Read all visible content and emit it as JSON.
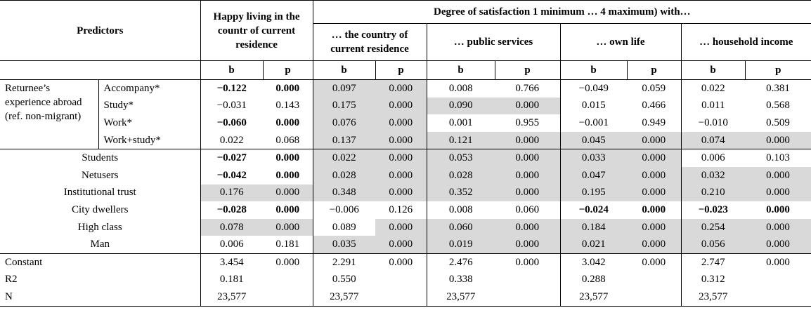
{
  "header": {
    "predictors": "Predictors",
    "happy": "Happy living in the countr of current residence",
    "satisfaction_title": "Degree of satisfaction 1 minimum … 4 maximum) with…",
    "sub": [
      "… the country of current residence",
      "… public services",
      "… own life",
      "… household income"
    ],
    "b": "b",
    "p": "p"
  },
  "returnee_label": "Returnee’s experience abroad (ref. non-migrant)",
  "returnee_rows": [
    {
      "label": "Accompany*",
      "vals": [
        "−0.122",
        "0.000",
        "0.097",
        "0.000",
        "0.008",
        "0.766",
        "−0.049",
        "0.059",
        "0.022",
        "0.381"
      ]
    },
    {
      "label": "Study*",
      "vals": [
        "−0.031",
        "0.143",
        "0.175",
        "0.000",
        "0.090",
        "0.000",
        "0.015",
        "0.466",
        "0.011",
        "0.568"
      ]
    },
    {
      "label": "Work*",
      "vals": [
        "−0.060",
        "0.000",
        "0.076",
        "0.000",
        "0.001",
        "0.955",
        "−0.001",
        "0.949",
        "−0.010",
        "0.509"
      ]
    },
    {
      "label": "Work+study*",
      "vals": [
        "0.022",
        "0.068",
        "0.137",
        "0.000",
        "0.121",
        "0.000",
        "0.045",
        "0.000",
        "0.074",
        "0.000"
      ]
    }
  ],
  "other_rows": [
    {
      "label": "Students",
      "vals": [
        "−0.027",
        "0.000",
        "0.022",
        "0.000",
        "0.053",
        "0.000",
        "0.033",
        "0.000",
        "0.006",
        "0.103"
      ]
    },
    {
      "label": "Netusers",
      "vals": [
        "−0.042",
        "0.000",
        "0.028",
        "0.000",
        "0.028",
        "0.000",
        "0.047",
        "0.000",
        "0.032",
        "0.000"
      ]
    },
    {
      "label": "Institutional trust",
      "vals": [
        "0.176",
        "0.000",
        "0.348",
        "0.000",
        "0.352",
        "0.000",
        "0.195",
        "0.000",
        "0.210",
        "0.000"
      ]
    },
    {
      "label": "City dwellers",
      "vals": [
        "−0.028",
        "0.000",
        "−0.006",
        "0.126",
        "0.008",
        "0.060",
        "−0.024",
        "0.000",
        "−0.023",
        "0.000"
      ]
    },
    {
      "label": "High class",
      "vals": [
        "0.078",
        "0.000",
        "0.089",
        "0.000",
        "0.060",
        "0.000",
        "0.184",
        "0.000",
        "0.254",
        "0.000"
      ]
    },
    {
      "label": "Man",
      "vals": [
        "0.006",
        "0.181",
        "0.035",
        "0.000",
        "0.019",
        "0.000",
        "0.021",
        "0.000",
        "0.056",
        "0.000"
      ]
    }
  ],
  "footer_rows": [
    {
      "label": "Constant",
      "vals": [
        "3.454",
        "0.000",
        "2.291",
        "0.000",
        "2.476",
        "0.000",
        "3.042",
        "0.000",
        "2.747",
        "0.000"
      ]
    },
    {
      "label": "R2",
      "vals": [
        "0.181",
        "",
        "0.550",
        "",
        "0.338",
        "",
        "0.288",
        "",
        "0.312",
        ""
      ]
    },
    {
      "label": "N",
      "vals": [
        "23,577",
        "",
        "23,577",
        "",
        "23,577",
        "",
        "23,577",
        "",
        "23,577",
        ""
      ]
    }
  ],
  "shading_color": "#d9d9d9"
}
